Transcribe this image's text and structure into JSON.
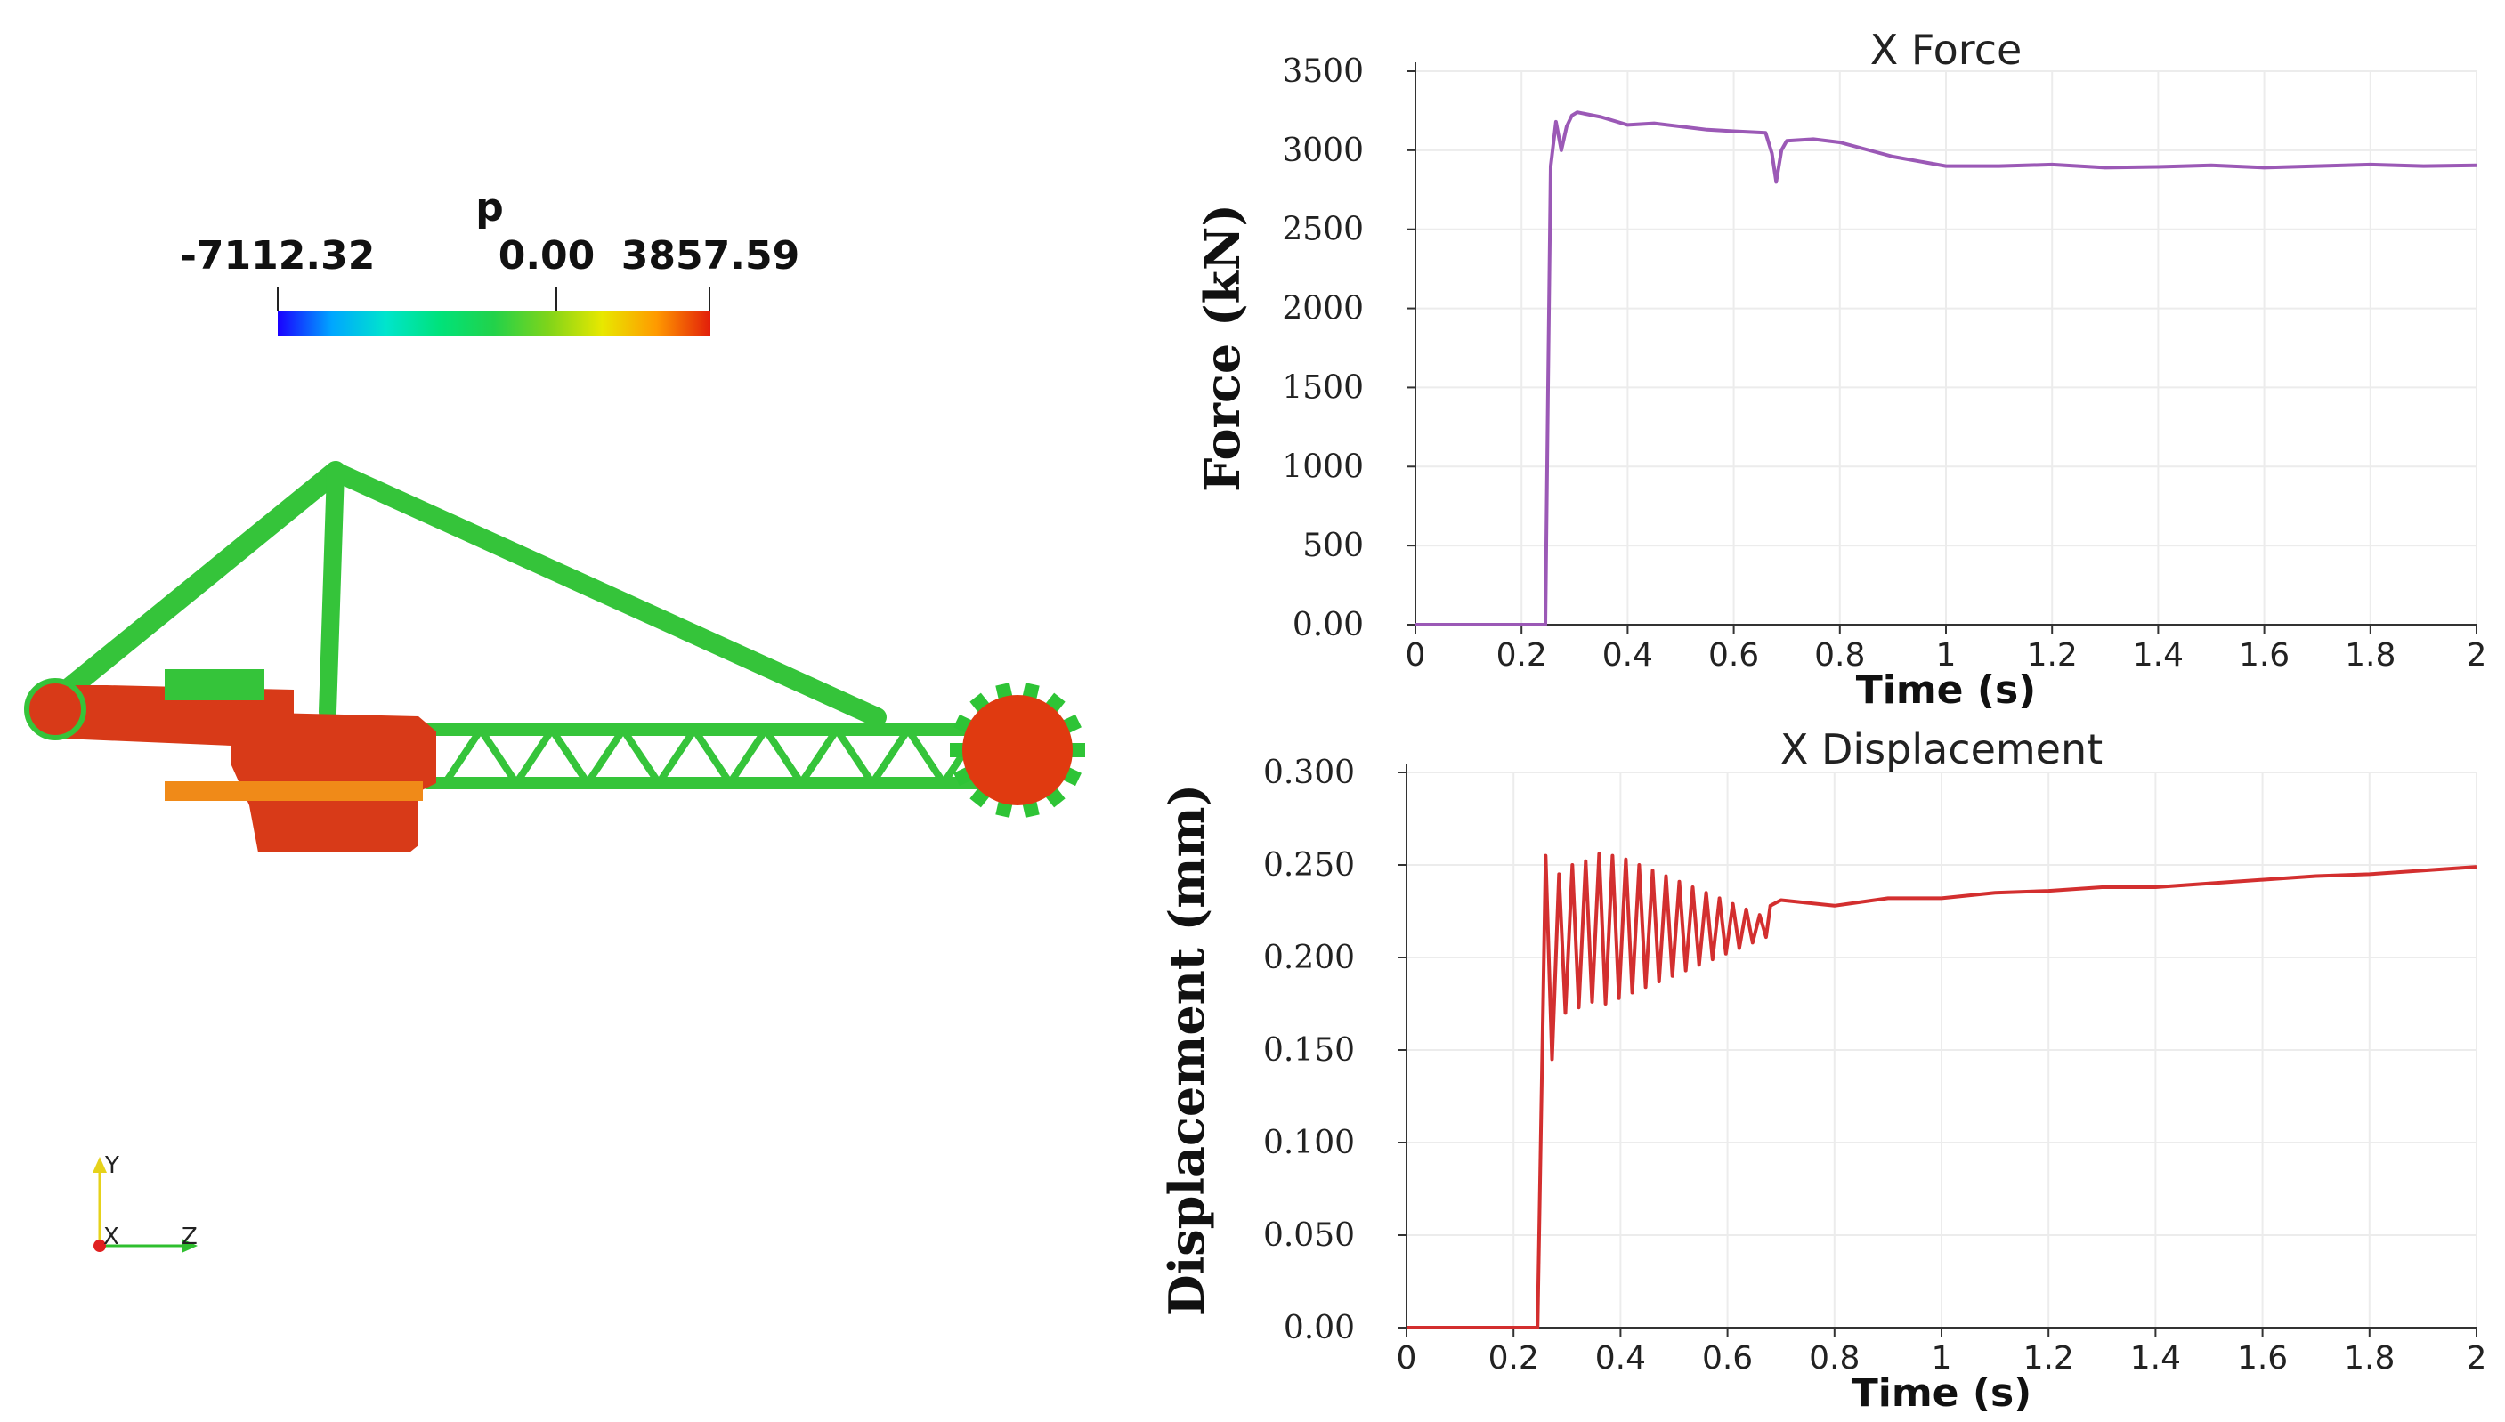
{
  "colorbar": {
    "title": "p",
    "min_label": "-7112.32",
    "mid_label": "0.00",
    "max_label": "3857.59",
    "range": [
      -7112.32,
      3857.59
    ],
    "colors": [
      "#1a00ff",
      "#00a6ff",
      "#00e5cc",
      "#00e27a",
      "#22d24a",
      "#7fd41a",
      "#e8e800",
      "#ff9a00",
      "#e21e0a"
    ]
  },
  "model": {
    "colors": {
      "frame": "#35c43a",
      "body": "#d83a18",
      "body_light": "#f08a18",
      "wheel": "#e03a10",
      "teeth": "#2ec436"
    }
  },
  "axes_triad": {
    "y_label": "Y",
    "x_label": "X",
    "z_label": "Z"
  },
  "chart_data": [
    {
      "type": "line",
      "title": "X Force",
      "xlabel": "Time (s)",
      "ylabel": "Force (kN)",
      "xlim": [
        0,
        2
      ],
      "ylim": [
        0,
        3500
      ],
      "x_ticks": [
        "0",
        "0.2",
        "0.4",
        "0.6",
        "0.8",
        "1",
        "1.2",
        "1.4",
        "1.6",
        "1.8",
        "2"
      ],
      "y_ticks": [
        {
          "value": 0,
          "label": "0.00"
        },
        {
          "value": 500,
          "label": "500"
        },
        {
          "value": 1000,
          "label": "1000"
        },
        {
          "value": 1500,
          "label": "1500"
        },
        {
          "value": 2000,
          "label": "2000"
        },
        {
          "value": 2500,
          "label": "2500"
        },
        {
          "value": 3000,
          "label": "3000"
        },
        {
          "value": 3500,
          "label": "3500"
        }
      ],
      "color": "#9b59b6",
      "series": [
        {
          "name": "X Force",
          "x": [
            0,
            0.245,
            0.25,
            0.255,
            0.265,
            0.275,
            0.285,
            0.295,
            0.305,
            0.35,
            0.4,
            0.45,
            0.5,
            0.55,
            0.6,
            0.66,
            0.672,
            0.68,
            0.69,
            0.7,
            0.75,
            0.8,
            0.9,
            1.0,
            1.1,
            1.2,
            1.3,
            1.4,
            1.5,
            1.6,
            1.7,
            1.8,
            1.9,
            2.0
          ],
          "y": [
            0,
            0,
            1500,
            2900,
            3180,
            3000,
            3150,
            3220,
            3240,
            3210,
            3160,
            3170,
            3150,
            3130,
            3120,
            3110,
            2980,
            2800,
            3000,
            3060,
            3070,
            3050,
            2960,
            2900,
            2900,
            2910,
            2890,
            2895,
            2905,
            2890,
            2900,
            2910,
            2900,
            2905
          ]
        }
      ]
    },
    {
      "type": "line",
      "title": "X Displacement",
      "xlabel": "Time (s)",
      "ylabel": "Displacement (mm)",
      "xlim": [
        0,
        2
      ],
      "ylim": [
        0,
        0.3
      ],
      "x_ticks": [
        "0",
        "0.2",
        "0.4",
        "0.6",
        "0.8",
        "1",
        "1.2",
        "1.4",
        "1.6",
        "1.8",
        "2"
      ],
      "y_ticks": [
        {
          "value": 0,
          "label": "0.00"
        },
        {
          "value": 0.05,
          "label": "0.050"
        },
        {
          "value": 0.1,
          "label": "0.100"
        },
        {
          "value": 0.15,
          "label": "0.150"
        },
        {
          "value": 0.2,
          "label": "0.200"
        },
        {
          "value": 0.25,
          "label": "0.250"
        },
        {
          "value": 0.3,
          "label": "0.300"
        }
      ],
      "color": "#d32f2f",
      "series": [
        {
          "name": "X Displacement",
          "x": [
            0,
            0.245,
            0.26,
            0.272,
            0.285,
            0.297,
            0.31,
            0.322,
            0.335,
            0.347,
            0.36,
            0.372,
            0.385,
            0.397,
            0.41,
            0.422,
            0.435,
            0.447,
            0.46,
            0.472,
            0.485,
            0.497,
            0.51,
            0.522,
            0.535,
            0.547,
            0.56,
            0.572,
            0.585,
            0.597,
            0.61,
            0.622,
            0.635,
            0.647,
            0.66,
            0.672,
            0.68,
            0.7,
            0.8,
            0.9,
            1.0,
            1.1,
            1.2,
            1.3,
            1.4,
            1.5,
            1.6,
            1.7,
            1.8,
            1.9,
            2.0
          ],
          "y": [
            0,
            0,
            0.255,
            0.145,
            0.245,
            0.17,
            0.25,
            0.173,
            0.252,
            0.176,
            0.256,
            0.175,
            0.255,
            0.178,
            0.253,
            0.181,
            0.25,
            0.184,
            0.247,
            0.187,
            0.244,
            0.19,
            0.241,
            0.193,
            0.238,
            0.196,
            0.235,
            0.199,
            0.232,
            0.202,
            0.229,
            0.205,
            0.226,
            0.208,
            0.223,
            0.211,
            0.228,
            0.231,
            0.228,
            0.232,
            0.232,
            0.235,
            0.236,
            0.238,
            0.238,
            0.24,
            0.242,
            0.244,
            0.245,
            0.247,
            0.249
          ]
        }
      ]
    }
  ]
}
